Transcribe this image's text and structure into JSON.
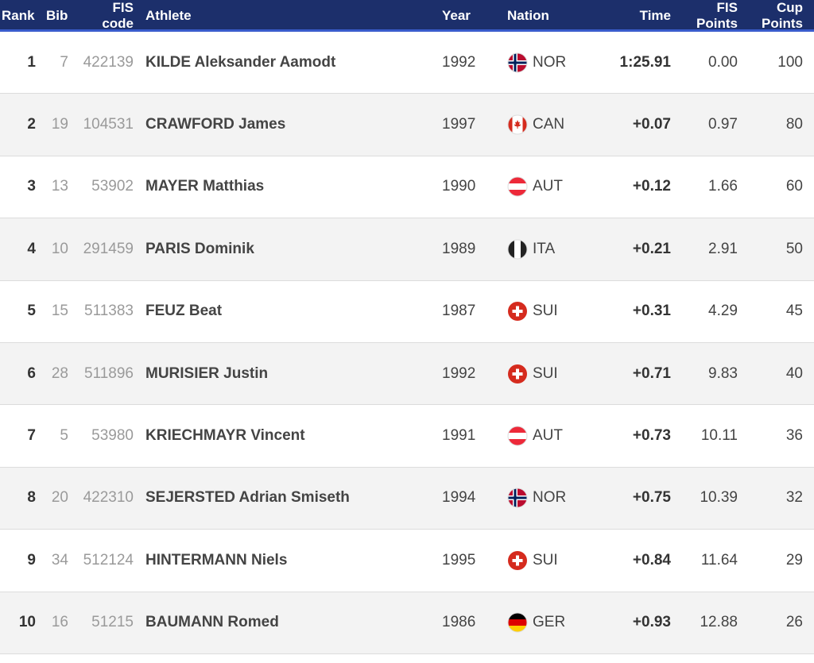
{
  "headers": {
    "rank": "Rank",
    "bib": "Bib",
    "fis_code_line1": "FIS",
    "fis_code_line2": "code",
    "athlete": "Athlete",
    "year": "Year",
    "nation": "Nation",
    "time": "Time",
    "fis_points_line1": "FIS",
    "fis_points_line2": "Points",
    "cup_points_line1": "Cup",
    "cup_points_line2": "Points"
  },
  "colors": {
    "header_bg": "#1c2f6b",
    "header_accent": "#3a5ccc",
    "row_alt": "#f3f3f3"
  },
  "rows": [
    {
      "rank": "1",
      "bib": "7",
      "fis_code": "422139",
      "athlete": "KILDE Aleksander Aamodt",
      "year": "1992",
      "nation": "NOR",
      "flag_icon": "norway-flag-icon",
      "time": "1:25.91",
      "fis_points": "0.00",
      "cup_points": "100"
    },
    {
      "rank": "2",
      "bib": "19",
      "fis_code": "104531",
      "athlete": "CRAWFORD James",
      "year": "1997",
      "nation": "CAN",
      "flag_icon": "canada-flag-icon",
      "time": "+0.07",
      "fis_points": "0.97",
      "cup_points": "80"
    },
    {
      "rank": "3",
      "bib": "13",
      "fis_code": "53902",
      "athlete": "MAYER Matthias",
      "year": "1990",
      "nation": "AUT",
      "flag_icon": "austria-flag-icon",
      "time": "+0.12",
      "fis_points": "1.66",
      "cup_points": "60"
    },
    {
      "rank": "4",
      "bib": "10",
      "fis_code": "291459",
      "athlete": "PARIS Dominik",
      "year": "1989",
      "nation": "ITA",
      "flag_icon": "italy-flag-icon",
      "time": "+0.21",
      "fis_points": "2.91",
      "cup_points": "50"
    },
    {
      "rank": "5",
      "bib": "15",
      "fis_code": "511383",
      "athlete": "FEUZ Beat",
      "year": "1987",
      "nation": "SUI",
      "flag_icon": "switzerland-flag-icon",
      "time": "+0.31",
      "fis_points": "4.29",
      "cup_points": "45"
    },
    {
      "rank": "6",
      "bib": "28",
      "fis_code": "511896",
      "athlete": "MURISIER Justin",
      "year": "1992",
      "nation": "SUI",
      "flag_icon": "switzerland-flag-icon",
      "time": "+0.71",
      "fis_points": "9.83",
      "cup_points": "40"
    },
    {
      "rank": "7",
      "bib": "5",
      "fis_code": "53980",
      "athlete": "KRIECHMAYR Vincent",
      "year": "1991",
      "nation": "AUT",
      "flag_icon": "austria-flag-icon",
      "time": "+0.73",
      "fis_points": "10.11",
      "cup_points": "36"
    },
    {
      "rank": "8",
      "bib": "20",
      "fis_code": "422310",
      "athlete": "SEJERSTED Adrian Smiseth",
      "year": "1994",
      "nation": "NOR",
      "flag_icon": "norway-flag-icon",
      "time": "+0.75",
      "fis_points": "10.39",
      "cup_points": "32"
    },
    {
      "rank": "9",
      "bib": "34",
      "fis_code": "512124",
      "athlete": "HINTERMANN Niels",
      "year": "1995",
      "nation": "SUI",
      "flag_icon": "switzerland-flag-icon",
      "time": "+0.84",
      "fis_points": "11.64",
      "cup_points": "29"
    },
    {
      "rank": "10",
      "bib": "16",
      "fis_code": "51215",
      "athlete": "BAUMANN Romed",
      "year": "1986",
      "nation": "GER",
      "flag_icon": "germany-flag-icon",
      "time": "+0.93",
      "fis_points": "12.88",
      "cup_points": "26"
    }
  ]
}
